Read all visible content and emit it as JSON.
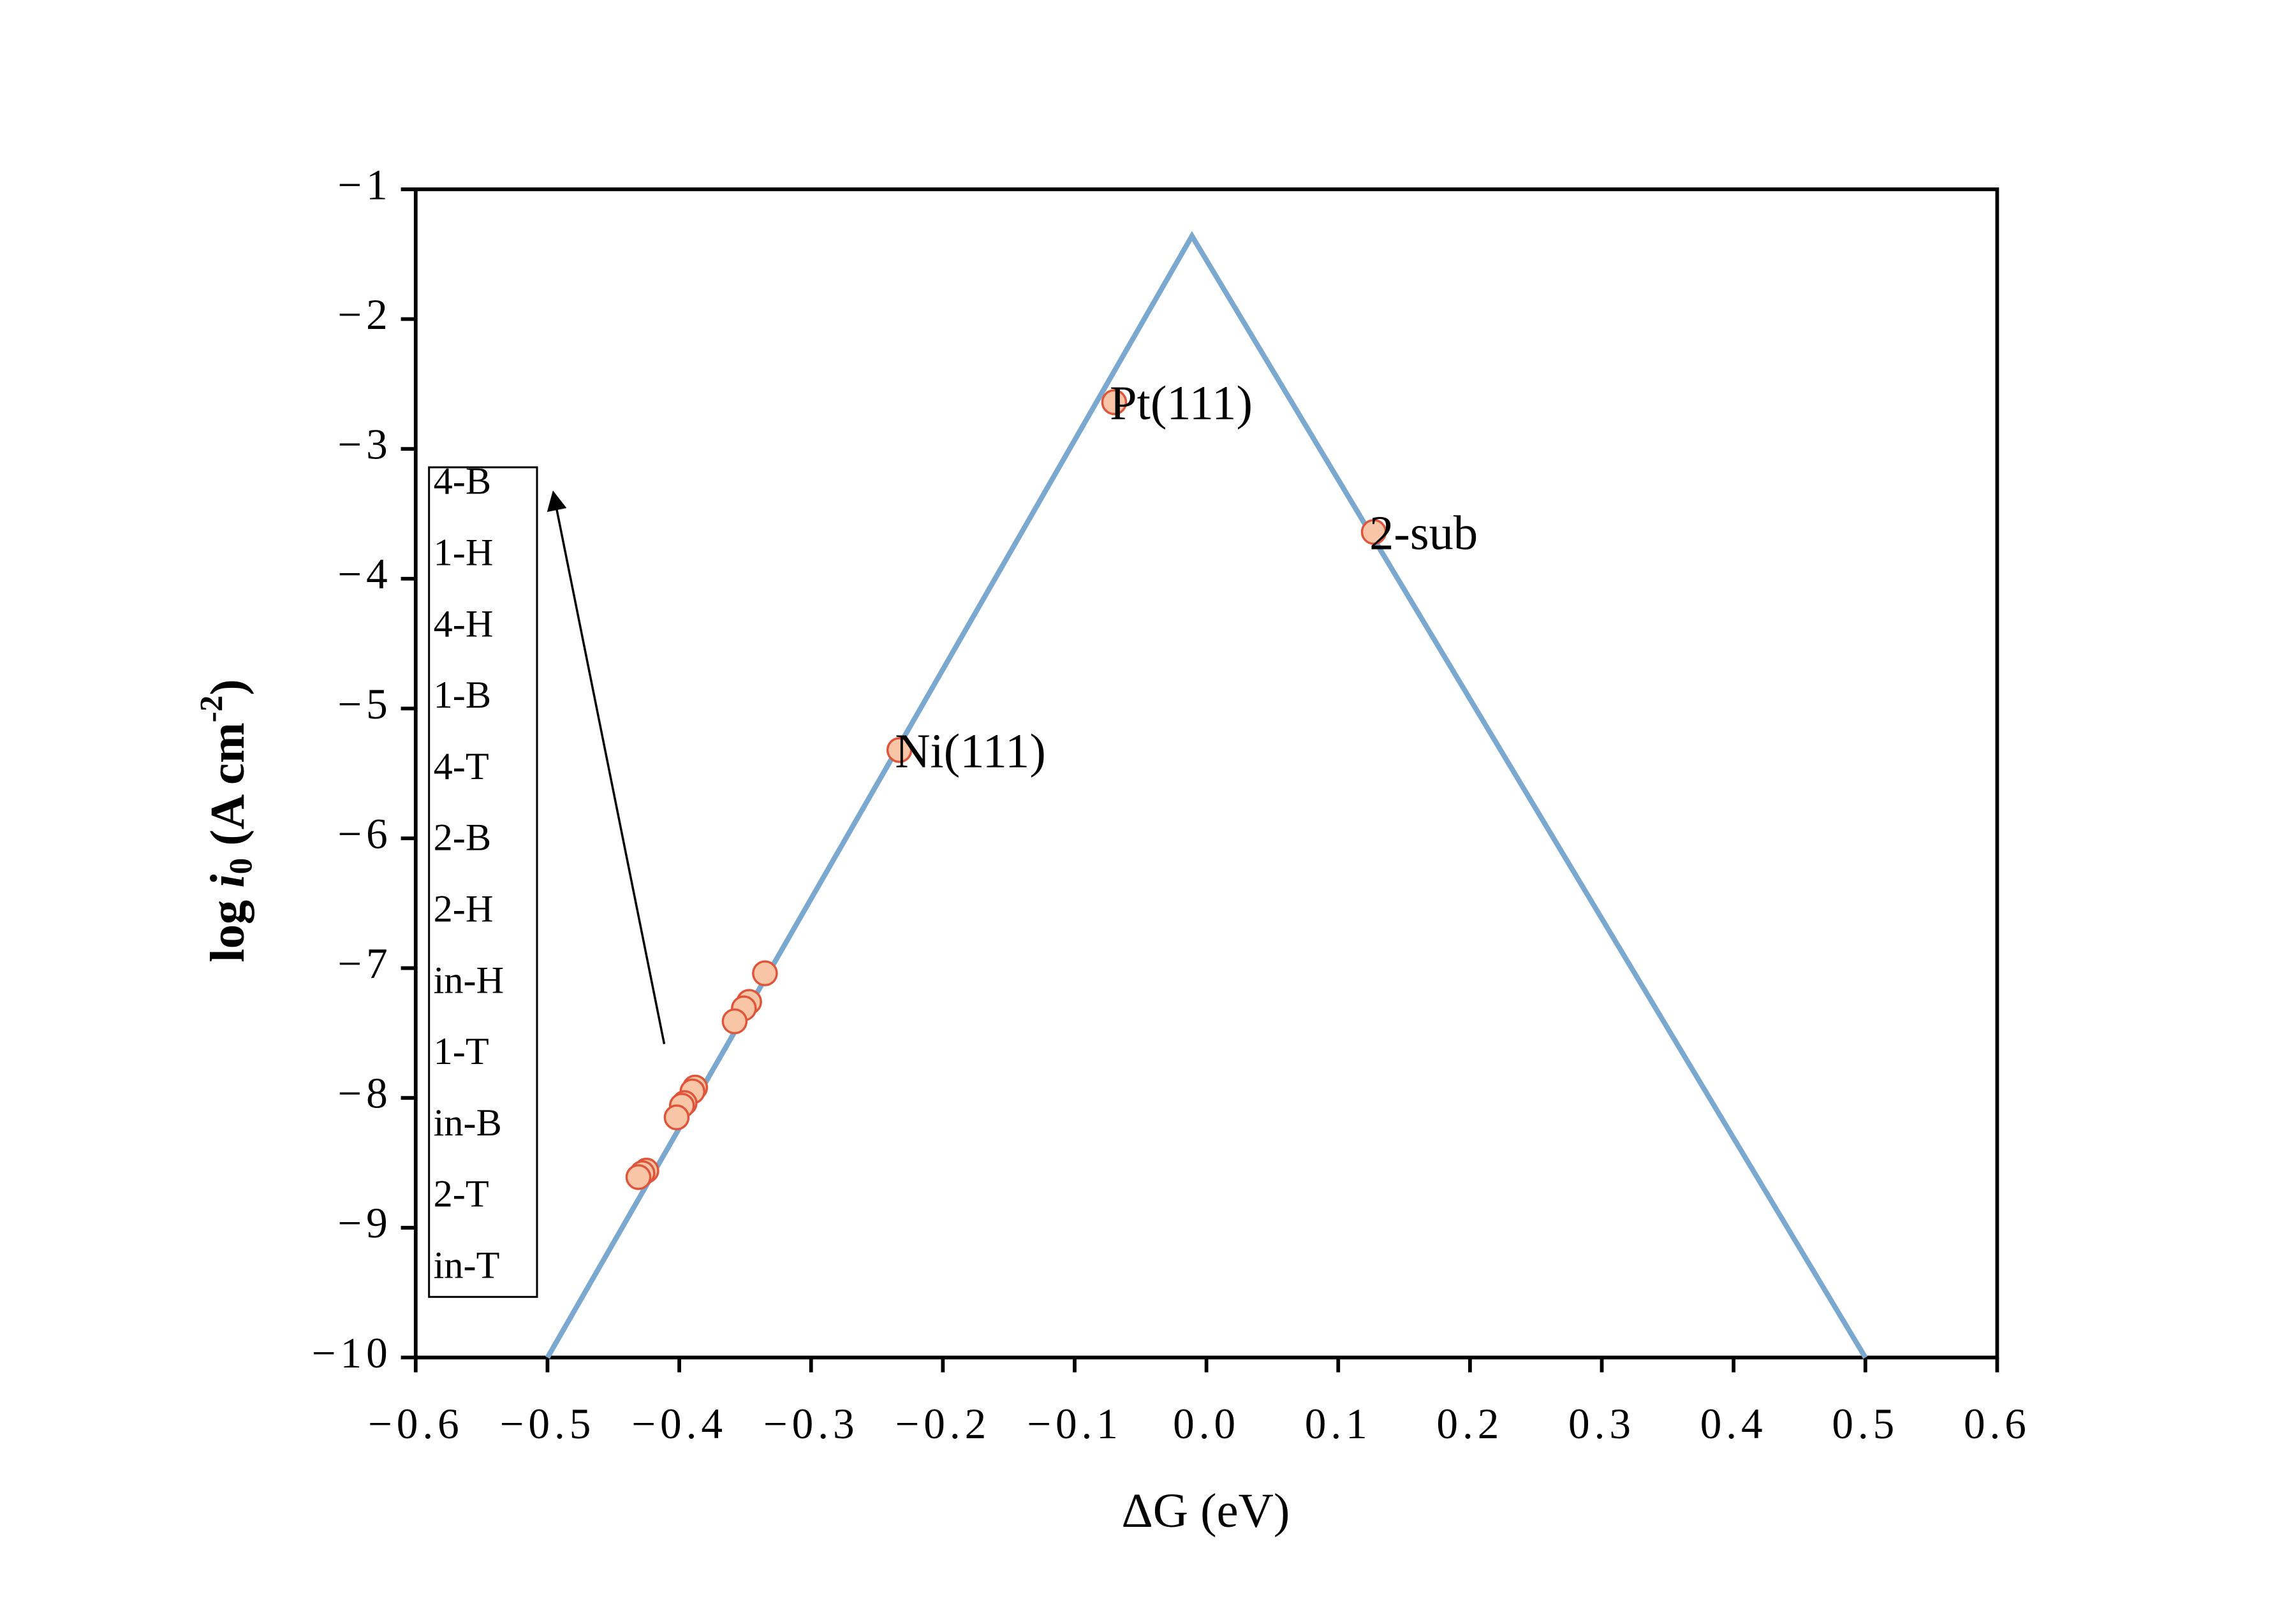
{
  "chart_data": {
    "type": "scatter",
    "xlabel": "ΔG (eV)",
    "ylabel": {
      "prefix": "log ",
      "var": "i",
      "sub": "0",
      "unit": " (A cm",
      "sup": "-2",
      "close": ")"
    },
    "xlim": [
      -0.6,
      0.6
    ],
    "ylim": [
      -10,
      -1
    ],
    "xticks": [
      {
        "value": -0.6,
        "label": "−0.6"
      },
      {
        "value": -0.5,
        "label": "−0.5"
      },
      {
        "value": -0.4,
        "label": "−0.4"
      },
      {
        "value": -0.3,
        "label": "−0.3"
      },
      {
        "value": -0.2,
        "label": "−0.2"
      },
      {
        "value": -0.1,
        "label": "−0.1"
      },
      {
        "value": 0,
        "label": "0.0"
      },
      0.1,
      0.2,
      0.3,
      0.4,
      0.5,
      0.6
    ],
    "yticks": [
      {
        "value": -10,
        "label": "−10"
      },
      {
        "value": -9,
        "label": "−9"
      },
      {
        "value": -8,
        "label": "−8"
      },
      {
        "value": -7,
        "label": "−7"
      },
      {
        "value": -6,
        "label": "−6"
      },
      {
        "value": -5,
        "label": "−5"
      },
      {
        "value": -4,
        "label": "−4"
      },
      {
        "value": -3,
        "label": "−3"
      },
      {
        "value": -2,
        "label": "−2"
      },
      {
        "value": -1,
        "label": "−1"
      }
    ],
    "volcano": {
      "color": "#7aa8cf",
      "x": [
        -0.5,
        -0.011,
        0.5
      ],
      "values": [
        -10,
        -1.36,
        -10
      ]
    },
    "labeled_points": {
      "color": "#f8c6a6",
      "edge": "#e0553a",
      "labels": [
        "Pt(111)",
        "2-sub",
        "Ni(111)"
      ],
      "x": [
        -0.07,
        0.127,
        -0.233
      ],
      "values": [
        -2.64,
        -3.64,
        -5.32
      ]
    },
    "points": {
      "color": "#f8c6a6",
      "edge": "#e0553a",
      "x": [
        -0.335,
        -0.347,
        -0.351,
        -0.358,
        -0.388,
        -0.39,
        -0.396,
        -0.398,
        -0.402,
        -0.425,
        -0.428,
        -0.431
      ],
      "values": [
        -7.04,
        -7.26,
        -7.31,
        -7.41,
        -7.92,
        -7.95,
        -8.04,
        -8.06,
        -8.15,
        -8.56,
        -8.58,
        -8.61
      ]
    },
    "box_labels": [
      "4-B",
      "1-H",
      "4-H",
      "1-B",
      "4-T",
      "2-B",
      "2-H",
      "in-H",
      "1-T",
      "in-B",
      "2-T",
      "in-T"
    ]
  }
}
